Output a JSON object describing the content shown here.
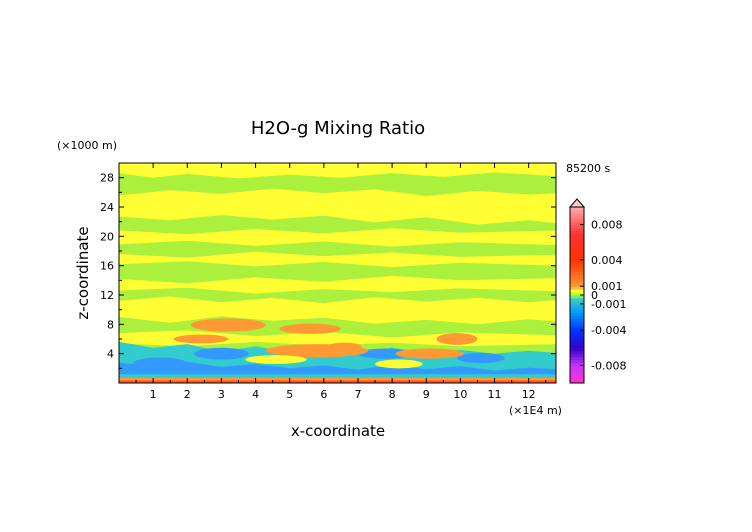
{
  "chart_data": {
    "type": "heatmap",
    "title": "H2O-g Mixing Ratio",
    "time_label": "85200 s",
    "xlabel": "x-coordinate",
    "ylabel": "z-coordinate",
    "x_unit": "(×1E4 m)",
    "y_unit": "(×1000 m)",
    "xlim": [
      0,
      12.8
    ],
    "ylim": [
      0,
      30
    ],
    "x_ticks": [
      "1",
      "2",
      "3",
      "4",
      "5",
      "6",
      "7",
      "8",
      "9",
      "10",
      "11",
      "12"
    ],
    "y_ticks": [
      "4",
      "8",
      "12",
      "16",
      "20",
      "24",
      "28"
    ],
    "colorbar": {
      "range": [
        -0.01,
        0.01
      ],
      "tick_labels": [
        "0.008",
        "0.004",
        "0.001",
        "0",
        "-0.001",
        "-0.004",
        "-0.008"
      ],
      "tick_values": [
        0.008,
        0.004,
        0.001,
        0,
        -0.001,
        -0.004,
        -0.008
      ],
      "color_stops": [
        {
          "value": -0.01,
          "color": "#ff33cc"
        },
        {
          "value": -0.008,
          "color": "#cc33ff"
        },
        {
          "value": -0.006,
          "color": "#3300cc"
        },
        {
          "value": -0.004,
          "color": "#0033ff"
        },
        {
          "value": -0.002,
          "color": "#0099ff"
        },
        {
          "value": -0.0005,
          "color": "#33cccc"
        },
        {
          "value": 0.0,
          "color": "#99ff33"
        },
        {
          "value": 0.0005,
          "color": "#ffff33"
        },
        {
          "value": 0.001,
          "color": "#ff9933"
        },
        {
          "value": 0.004,
          "color": "#ff3300"
        },
        {
          "value": 0.007,
          "color": "#ff3333"
        },
        {
          "value": 0.01,
          "color": "#ffaaaa"
        }
      ]
    },
    "field_colors": {
      "green": "#aaf03c",
      "yellow": "#ffff33",
      "orange": "#ff9933",
      "cyan": "#33cccc",
      "blue": "#3399ff",
      "red": "#ff5533"
    }
  }
}
